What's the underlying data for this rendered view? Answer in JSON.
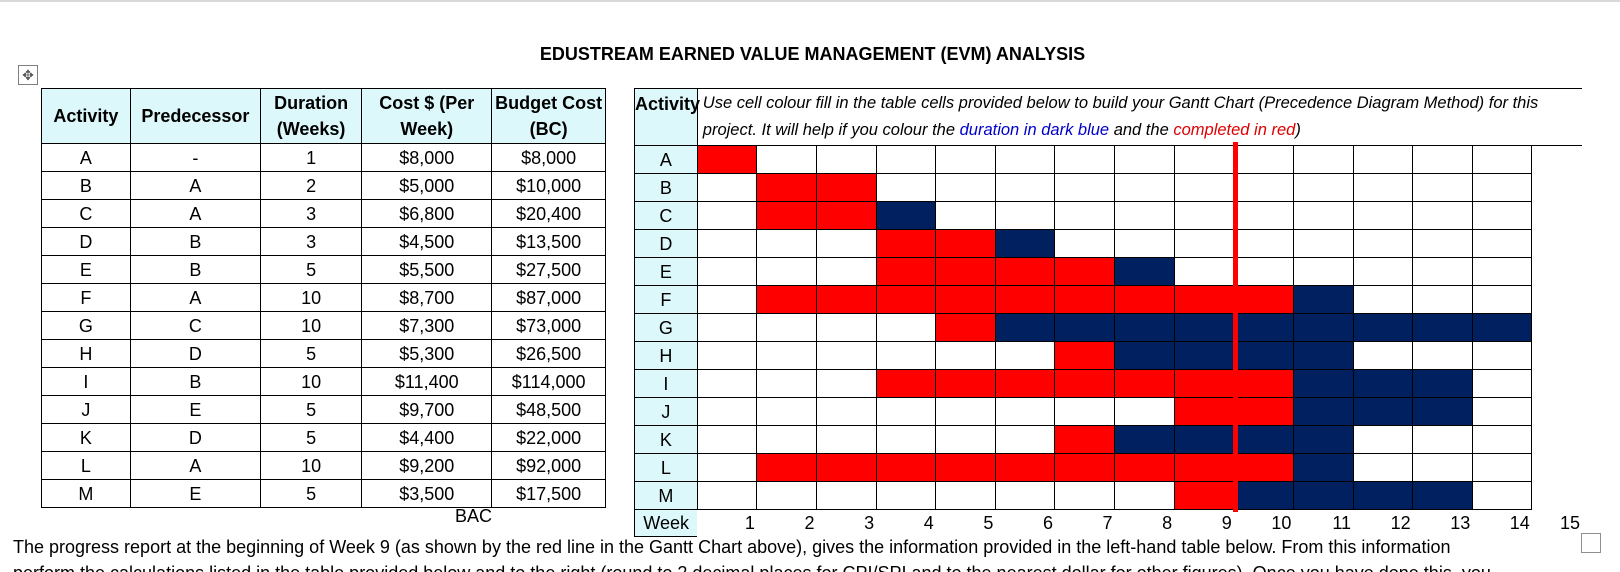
{
  "title": "EDUSTREAM EARNED VALUE MANAGEMENT (EVM) ANALYSIS",
  "move_handle_glyph": "✥",
  "left_table": {
    "headers": [
      "Activity",
      "Predecessor",
      "Duration (Weeks)",
      "Cost $ (Per Week)",
      "Budget Cost (BC)"
    ],
    "rows": [
      {
        "activity": "A",
        "predecessor": "-",
        "duration": "1",
        "cost": "$8,000",
        "budget": "$8,000"
      },
      {
        "activity": "B",
        "predecessor": "A",
        "duration": "2",
        "cost": "$5,000",
        "budget": "$10,000"
      },
      {
        "activity": "C",
        "predecessor": "A",
        "duration": "3",
        "cost": "$6,800",
        "budget": "$20,400"
      },
      {
        "activity": "D",
        "predecessor": "B",
        "duration": "3",
        "cost": "$4,500",
        "budget": "$13,500"
      },
      {
        "activity": "E",
        "predecessor": "B",
        "duration": "5",
        "cost": "$5,500",
        "budget": "$27,500"
      },
      {
        "activity": "F",
        "predecessor": "A",
        "duration": "10",
        "cost": "$8,700",
        "budget": "$87,000"
      },
      {
        "activity": "G",
        "predecessor": "C",
        "duration": "10",
        "cost": "$7,300",
        "budget": "$73,000"
      },
      {
        "activity": "H",
        "predecessor": "D",
        "duration": "5",
        "cost": "$5,300",
        "budget": "$26,500"
      },
      {
        "activity": "I",
        "predecessor": "B",
        "duration": "10",
        "cost": "$11,400",
        "budget": "$114,000"
      },
      {
        "activity": "J",
        "predecessor": "E",
        "duration": "5",
        "cost": "$9,700",
        "budget": "$48,500"
      },
      {
        "activity": "K",
        "predecessor": "D",
        "duration": "5",
        "cost": "$4,400",
        "budget": "$22,000"
      },
      {
        "activity": "L",
        "predecessor": "A",
        "duration": "10",
        "cost": "$9,200",
        "budget": "$92,000"
      },
      {
        "activity": "M",
        "predecessor": "E",
        "duration": "5",
        "cost": "$3,500",
        "budget": "$17,500"
      }
    ],
    "bac_label": "BAC"
  },
  "gantt": {
    "activity_header": "Activity",
    "instruction": {
      "part1": "Use cell colour fill in the table cells provided below to build your Gantt Chart (Precedence Diagram Method) for this project.  It will help if you colour the ",
      "duration_text": "duration in dark blue",
      "part2": " and the ",
      "completed_text": "completed in red",
      "part3": ")"
    },
    "colors": {
      "completed": "#ff0000",
      "duration": "#002060",
      "header_fill": "#ddf8fb"
    },
    "week_label": "Week",
    "weeks": [
      "1",
      "2",
      "3",
      "4",
      "5",
      "6",
      "7",
      "8",
      "9",
      "10",
      "11",
      "12",
      "13",
      "14",
      "15"
    ],
    "rows": [
      {
        "activity": "A",
        "red": [
          1
        ],
        "blue": []
      },
      {
        "activity": "B",
        "red": [
          2,
          3
        ],
        "blue": []
      },
      {
        "activity": "C",
        "red": [
          2,
          3
        ],
        "blue": [
          4
        ]
      },
      {
        "activity": "D",
        "red": [
          4,
          5
        ],
        "blue": [
          6
        ]
      },
      {
        "activity": "E",
        "red": [
          4,
          5,
          6,
          7
        ],
        "blue": [
          8
        ]
      },
      {
        "activity": "F",
        "red": [
          2,
          3,
          4,
          5,
          6,
          7,
          8,
          9,
          10
        ],
        "blue": [
          11
        ]
      },
      {
        "activity": "G",
        "red": [
          5
        ],
        "blue": [
          6,
          7,
          8,
          9,
          10,
          11,
          12,
          13,
          14
        ]
      },
      {
        "activity": "H",
        "red": [
          7
        ],
        "blue": [
          8,
          9,
          10,
          11
        ]
      },
      {
        "activity": "I",
        "red": [
          4,
          5,
          6,
          7,
          8,
          9,
          10
        ],
        "blue": [
          11,
          12,
          13
        ]
      },
      {
        "activity": "J",
        "red": [
          9,
          10
        ],
        "blue": [
          11,
          12,
          13
        ]
      },
      {
        "activity": "K",
        "red": [
          7
        ],
        "blue": [
          8,
          9,
          10,
          11
        ]
      },
      {
        "activity": "L",
        "red": [
          2,
          3,
          4,
          5,
          6,
          7,
          8,
          9,
          10
        ],
        "blue": [
          11
        ]
      },
      {
        "activity": "M",
        "red": [
          9
        ],
        "blue": [
          10,
          11,
          12,
          13
        ]
      }
    ],
    "status_line_week": 9
  },
  "paragraph": {
    "line1": "The progress report at the beginning of Week 9 (as shown by the red line in the Gantt Chart above), gives the information provided in the left-hand table below.  From this information",
    "line2": "perform the calculations listed in the table provided below and to the right (round to 2 decimal places for CPI/SPI and to the nearest dollar for other figures).  Once you have done this, you"
  }
}
